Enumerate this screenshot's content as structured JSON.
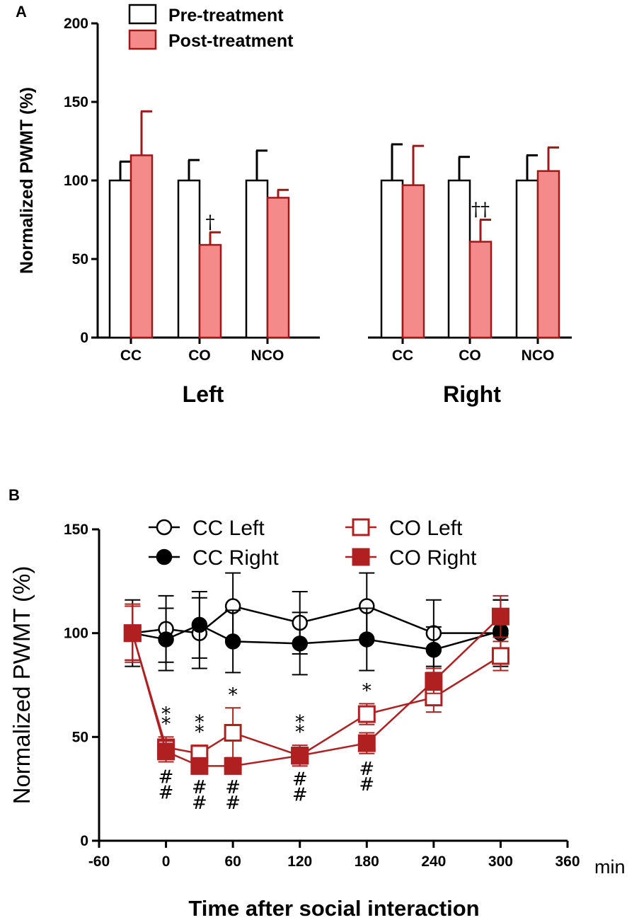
{
  "colors": {
    "pre_fill": "#ffffff",
    "post_fill": "#f48a8a",
    "post_stroke": "#a01818",
    "black": "#000000",
    "co_line": "#b02020"
  },
  "chart_data": [
    {
      "panel": "A",
      "type": "bar",
      "title": "",
      "xlabel": "",
      "ylabel": "Normalized PWMT (%)",
      "ylim": [
        0,
        200
      ],
      "yticks": [
        "0",
        "50",
        "100",
        "150",
        "200"
      ],
      "groups": [
        "Left",
        "Right"
      ],
      "categories": [
        "CC",
        "CO",
        "NCO",
        "CC",
        "CO",
        "NCO"
      ],
      "series": [
        {
          "name": "Pre-treatment",
          "values": [
            100,
            100,
            100,
            100,
            100,
            100
          ],
          "errors": [
            12,
            13,
            19,
            23,
            15,
            16
          ]
        },
        {
          "name": "Post-treatment",
          "values": [
            116,
            59,
            89,
            97,
            61,
            106
          ],
          "errors": [
            28,
            8,
            5,
            25,
            14,
            15
          ]
        }
      ],
      "annotations": [
        {
          "text": "†",
          "category_index": 1
        },
        {
          "text": "††",
          "category_index": 4
        }
      ]
    },
    {
      "panel": "B",
      "type": "line",
      "title": "",
      "xlabel": "Time after social interaction",
      "ylabel": "Normalized PWMT (%)",
      "x_unit": "min",
      "xlim": [
        -60,
        360
      ],
      "ylim": [
        0,
        150
      ],
      "xticks": [
        "-60",
        "0",
        "60",
        "120",
        "180",
        "240",
        "300",
        "360"
      ],
      "yticks": [
        "0",
        "50",
        "100",
        "150"
      ],
      "legend": [
        "CC Left",
        "CC Right",
        "CO Left",
        "CO Right"
      ],
      "series": [
        {
          "name": "CC Left",
          "x": [
            -30,
            0,
            30,
            60,
            120,
            180,
            240,
            300
          ],
          "values": [
            100,
            102,
            100,
            113,
            105,
            113,
            100,
            100
          ],
          "errors": [
            16,
            16,
            17,
            16,
            15,
            16,
            16,
            16
          ]
        },
        {
          "name": "CC Right",
          "x": [
            -30,
            0,
            30,
            60,
            120,
            180,
            240,
            300
          ],
          "values": [
            100,
            97,
            104,
            96,
            95,
            97,
            92,
            101
          ],
          "errors": [
            13,
            15,
            16,
            15,
            15,
            15,
            11,
            15
          ]
        },
        {
          "name": "CO Left",
          "x": [
            -30,
            0,
            30,
            60,
            120,
            180,
            240,
            300
          ],
          "values": [
            100,
            45,
            42,
            52,
            41,
            61,
            69,
            89
          ],
          "errors": [
            13,
            5,
            4,
            12,
            5,
            5,
            7,
            7
          ]
        },
        {
          "name": "CO Right",
          "x": [
            -30,
            0,
            30,
            60,
            120,
            180,
            240,
            300
          ],
          "values": [
            100,
            43,
            36,
            36,
            41,
            47,
            77,
            108
          ],
          "errors": [
            14,
            5,
            3,
            3,
            4,
            5,
            6,
            10
          ]
        }
      ],
      "annotations": [
        {
          "text": "**",
          "x": 0
        },
        {
          "text": "**",
          "x": 30
        },
        {
          "text": "*",
          "x": 60
        },
        {
          "text": "**",
          "x": 120
        },
        {
          "text": "*",
          "x": 180
        },
        {
          "text": "##",
          "x": 0
        },
        {
          "text": "##",
          "x": 30
        },
        {
          "text": "##",
          "x": 60
        },
        {
          "text": "##",
          "x": 120
        },
        {
          "text": "##",
          "x": 180
        }
      ]
    }
  ]
}
